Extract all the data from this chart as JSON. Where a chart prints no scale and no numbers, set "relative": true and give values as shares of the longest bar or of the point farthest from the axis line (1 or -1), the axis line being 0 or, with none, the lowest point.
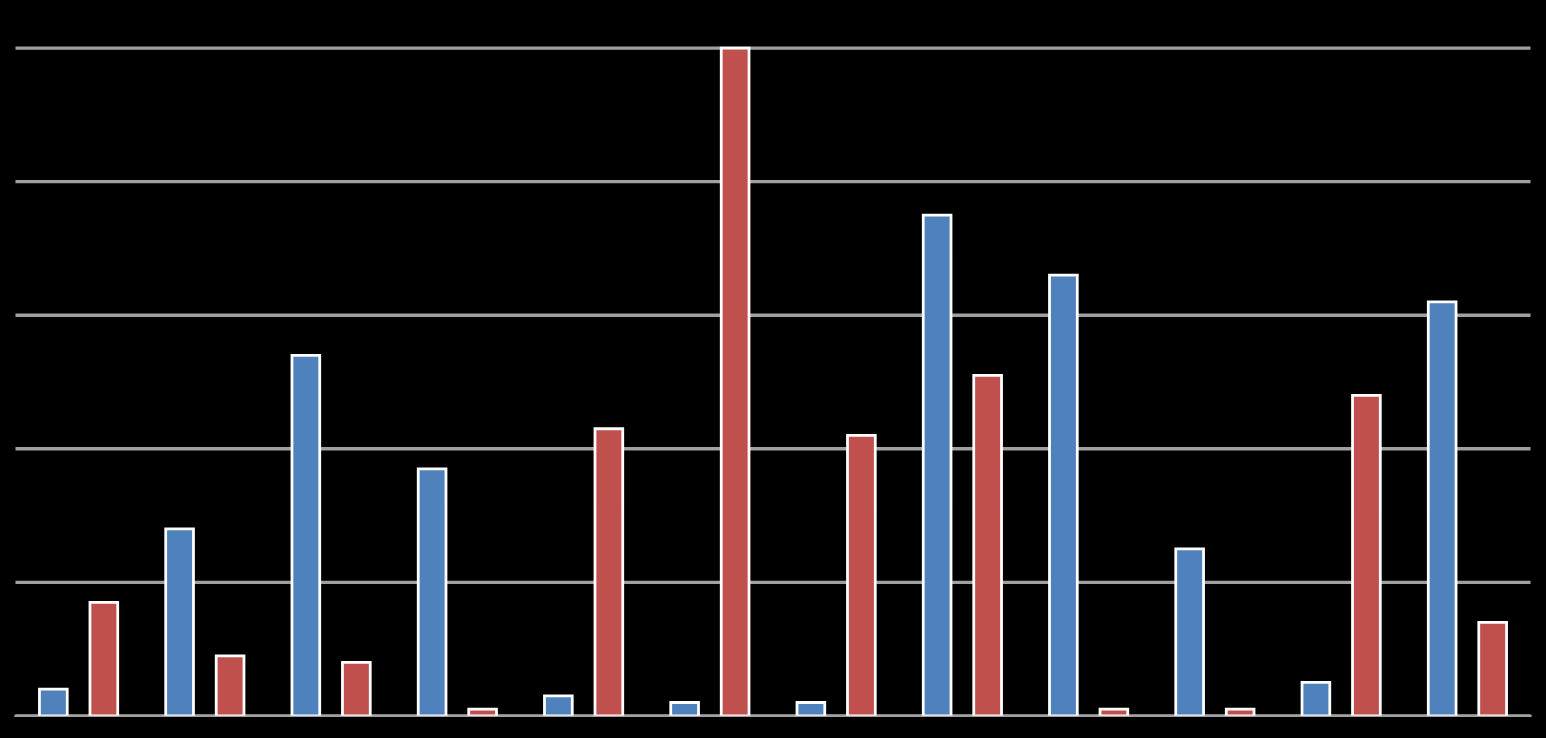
{
  "chart_data": {
    "type": "bar",
    "relative": true,
    "grid": "y",
    "categories": [
      null,
      null,
      null,
      null,
      null,
      null,
      null,
      null,
      null,
      null,
      null,
      null
    ],
    "series": [
      {
        "color": "#4f81bd",
        "values": [
          0.04,
          0.28,
          0.54,
          0.37,
          0.03,
          0.02,
          0.02,
          0.75,
          0.66,
          0.25,
          0.05,
          0.62
        ]
      },
      {
        "color": "#c0504d",
        "values": [
          0.17,
          0.09,
          0.08,
          0.01,
          0.43,
          1,
          0.42,
          0.51,
          0.01,
          0.01,
          0.48,
          0.14
        ]
      }
    ]
  }
}
